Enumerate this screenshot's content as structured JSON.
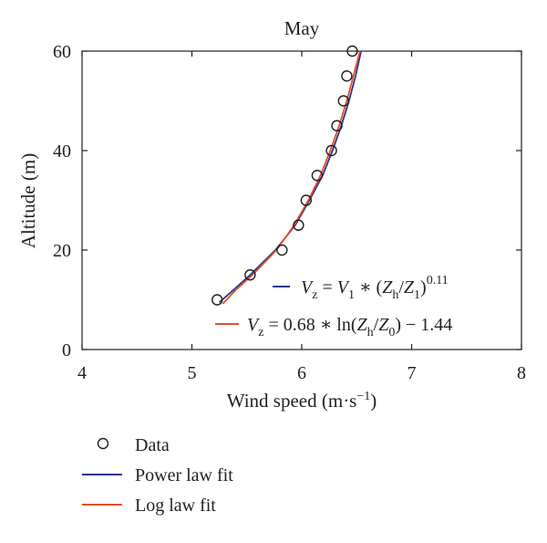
{
  "chart_data": {
    "type": "line",
    "title": "May",
    "xlabel": "Wind speed (m·s",
    "xlabel_sup": "−1",
    "xlabel_tail": ")",
    "ylabel": "Altitude (m)",
    "xlim": [
      4,
      8
    ],
    "ylim": [
      0,
      60
    ],
    "x_ticks": [
      "4",
      "5",
      "6",
      "7",
      "8"
    ],
    "y_ticks": [
      "0",
      "20",
      "40",
      "60"
    ],
    "grid": false,
    "series": [
      {
        "name": "Data",
        "style": "markers",
        "marker": "circle",
        "color": "#231f20",
        "points": [
          {
            "x": 5.23,
            "y": 10
          },
          {
            "x": 5.53,
            "y": 15
          },
          {
            "x": 5.82,
            "y": 20
          },
          {
            "x": 5.97,
            "y": 25
          },
          {
            "x": 6.04,
            "y": 30
          },
          {
            "x": 6.14,
            "y": 35
          },
          {
            "x": 6.27,
            "y": 40
          },
          {
            "x": 6.32,
            "y": 45
          },
          {
            "x": 6.38,
            "y": 50
          },
          {
            "x": 6.41,
            "y": 55
          },
          {
            "x": 6.46,
            "y": 60
          }
        ]
      },
      {
        "name": "Power law fit",
        "style": "line",
        "color": "#2e3192",
        "points": [
          {
            "x": 5.25,
            "y": 9.5
          },
          {
            "x": 5.38,
            "y": 12
          },
          {
            "x": 5.53,
            "y": 15
          },
          {
            "x": 5.76,
            "y": 20
          },
          {
            "x": 5.94,
            "y": 25
          },
          {
            "x": 6.07,
            "y": 30
          },
          {
            "x": 6.19,
            "y": 35
          },
          {
            "x": 6.28,
            "y": 40
          },
          {
            "x": 6.36,
            "y": 45
          },
          {
            "x": 6.43,
            "y": 50
          },
          {
            "x": 6.49,
            "y": 55
          },
          {
            "x": 6.54,
            "y": 60
          }
        ]
      },
      {
        "name": "Log law fit",
        "style": "line",
        "color": "#e0502a",
        "points": [
          {
            "x": 5.28,
            "y": 9.2
          },
          {
            "x": 5.4,
            "y": 12
          },
          {
            "x": 5.55,
            "y": 15
          },
          {
            "x": 5.77,
            "y": 20
          },
          {
            "x": 5.93,
            "y": 25
          },
          {
            "x": 6.06,
            "y": 30
          },
          {
            "x": 6.17,
            "y": 35
          },
          {
            "x": 6.26,
            "y": 40
          },
          {
            "x": 6.34,
            "y": 45
          },
          {
            "x": 6.41,
            "y": 50
          },
          {
            "x": 6.47,
            "y": 55
          },
          {
            "x": 6.53,
            "y": 60
          }
        ]
      }
    ],
    "annotations": [
      {
        "series": "Power law fit",
        "text": "V_z = V_1 * (Z_h/Z_1)^0.11",
        "parts": {
          "v": "V",
          "z": "z",
          "eq1": " = ",
          "v1": "V",
          "one": "1",
          "star": " ∗ (",
          "zh": "Z",
          "h": "h",
          "slash": "/",
          "z1": "Z",
          "one2": "1",
          "close": ")",
          "exp": "0.11"
        }
      },
      {
        "series": "Log law fit",
        "text": "V_z = 0.68 * ln(Z_h/Z_0) − 1.44",
        "parts": {
          "v": "V",
          "z": "z",
          "mid": " = 0.68 ∗ ln(",
          "zh": "Z",
          "h": "h",
          "slash": "/",
          "z0": "Z",
          "zero": "0",
          "tail": ") − 1.44"
        }
      }
    ],
    "legend": {
      "position": "bottom-left",
      "entries": [
        {
          "label": "Data",
          "kind": "marker",
          "color": "#231f20"
        },
        {
          "label": "Power law fit",
          "kind": "line",
          "color": "#2e3192"
        },
        {
          "label": "Log law fit",
          "kind": "line",
          "color": "#e0502a"
        }
      ]
    }
  }
}
